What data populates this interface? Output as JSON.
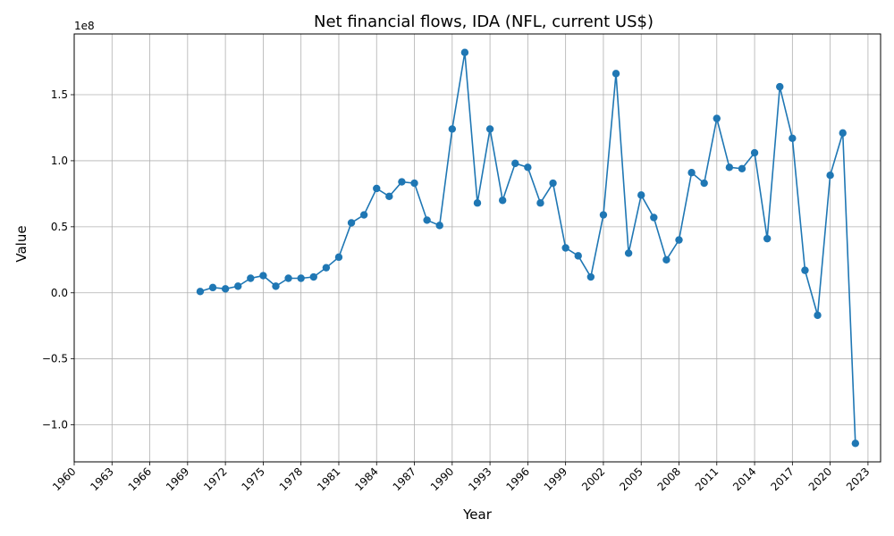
{
  "chart_data": {
    "type": "line",
    "title": "Net financial flows, IDA (NFL, current US$)",
    "xlabel": "Year",
    "ylabel": "Value",
    "offset_label": "1e8",
    "xlim": [
      1960,
      2024
    ],
    "ylim": [
      -1.28,
      1.96
    ],
    "grid": true,
    "marker": "circle",
    "color": "#1f77b4",
    "x_ticks": [
      1960,
      1963,
      1966,
      1969,
      1972,
      1975,
      1978,
      1981,
      1984,
      1987,
      1990,
      1993,
      1996,
      1999,
      2002,
      2005,
      2008,
      2011,
      2014,
      2017,
      2020,
      2023
    ],
    "y_ticks": [
      -1.0,
      -0.5,
      0.0,
      0.5,
      1.0,
      1.5
    ],
    "y_tick_labels": [
      "−1.0",
      "−0.5",
      "0.0",
      "0.5",
      "1.0",
      "1.5"
    ],
    "x": [
      1970,
      1971,
      1972,
      1973,
      1974,
      1975,
      1976,
      1977,
      1978,
      1979,
      1980,
      1981,
      1982,
      1983,
      1984,
      1985,
      1986,
      1987,
      1988,
      1989,
      1990,
      1991,
      1992,
      1993,
      1994,
      1995,
      1996,
      1997,
      1998,
      1999,
      2000,
      2001,
      2002,
      2003,
      2004,
      2005,
      2006,
      2007,
      2008,
      2009,
      2010,
      2011,
      2012,
      2013,
      2014,
      2015,
      2016,
      2017,
      2018,
      2019,
      2020,
      2021,
      2022
    ],
    "values_1e8": [
      0.01,
      0.04,
      0.03,
      0.05,
      0.11,
      0.13,
      0.05,
      0.11,
      0.11,
      0.12,
      0.19,
      0.27,
      0.53,
      0.59,
      0.79,
      0.73,
      0.84,
      0.83,
      0.55,
      0.51,
      1.24,
      1.82,
      0.68,
      1.24,
      0.7,
      0.98,
      0.95,
      0.68,
      0.83,
      0.34,
      0.28,
      0.12,
      0.59,
      1.66,
      0.3,
      0.74,
      0.57,
      0.25,
      0.4,
      0.91,
      0.83,
      1.32,
      0.95,
      0.94,
      1.06,
      0.41,
      1.56,
      1.17,
      0.17,
      -0.17,
      0.89,
      1.21,
      -1.14
    ]
  }
}
